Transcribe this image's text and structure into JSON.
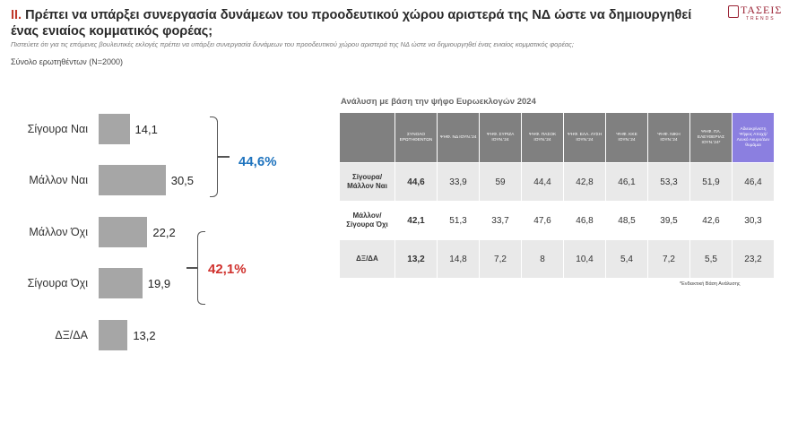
{
  "header": {
    "title_number": "II.",
    "title": "Πρέπει να υπάρξει συνεργασία δυνάμεων του προοδευτικού χώρου αριστερά της ΝΔ ώστε να δημιουργηθεί ένας ενιαίος κομματικός φορέας;",
    "subtitle": "Πιστεύετε ότι για τις επόμενες βουλευτικές εκλογές πρέπει να υπάρξει συνεργασία δυνάμεων του προοδευτικού χώρου αριστερά της ΝΔ ώστε να δημιουργηθεί ένας ενιαίος κομματικός φορέας;",
    "base": "Σύνολο ερωτηθέντων (N=2000)"
  },
  "logo": {
    "name": "ΤΑΣΕΙΣ",
    "sub": "TRENDS",
    "brand_color": "#9b2335"
  },
  "chart_data": {
    "type": "bar",
    "orientation": "horizontal",
    "categories": [
      "Σίγουρα Ναι",
      "Μάλλον Ναι",
      "Μάλλον Όχι",
      "Σίγουρα Όχι",
      "ΔΞ/ΔΑ"
    ],
    "values": [
      14.1,
      30.5,
      22.2,
      19.9,
      13.2
    ],
    "value_labels": [
      "14,1",
      "30,5",
      "22,2",
      "19,9",
      "13,2"
    ],
    "bar_color": "#a6a6a6",
    "groups": [
      {
        "label": "44,6%",
        "members": [
          "Σίγουρα Ναι",
          "Μάλλον Ναι"
        ],
        "color": "#1e73be"
      },
      {
        "label": "42,1%",
        "members": [
          "Μάλλον Όχι",
          "Σίγουρα Όχι"
        ],
        "color": "#d0312d"
      }
    ]
  },
  "table": {
    "title": "Ανάλυση με βάση την ψήφο Ευρωεκλογών 2024",
    "columns": [
      "ΣΥΝΟΛΟ ΕΡΩΤΗΘΕΝΤΩΝ",
      "ΨΗΦ. ΝΔ ΙΟΥΝ.'24",
      "ΨΗΦ. ΣΥΡΙΖΑ ΙΟΥΝ.'24",
      "ΨΗΦ. ΠΑΣΟΚ ΙΟΥΝ.'24",
      "ΨΗΦ. ΕΛΛ. ΛΥΣΗ ΙΟΥΝ.'24",
      "ΨΗΦ. ΚΚΕ ΙΟΥΝ.'24",
      "ΨΗΦ. ΝΙΚΗ ΙΟΥΝ.'24",
      "ΨΗΦ. ΠΛ. ΕΛΕΥΘΕΡΙΑΣ ΙΟΥΝ.'24*",
      "Αδιευκρίνιστη Ψήφος Αποχή/Λευκό Ακυρο/Δεν θυμάμαι"
    ],
    "highlight_column": 8,
    "highlight_color": "#8b7fe0",
    "rows": [
      {
        "label": "Σίγουρα/ Μάλλον Ναι",
        "values": [
          "44,6",
          "33,9",
          "59",
          "44,4",
          "42,8",
          "46,1",
          "53,3",
          "51,9",
          "46,4"
        ]
      },
      {
        "label": "Μάλλον/ Σίγουρα Όχι",
        "values": [
          "42,1",
          "51,3",
          "33,7",
          "47,6",
          "46,8",
          "48,5",
          "39,5",
          "42,6",
          "30,3"
        ]
      },
      {
        "label": "ΔΞ/ΔΑ",
        "values": [
          "13,2",
          "14,8",
          "7,2",
          "8",
          "10,4",
          "5,4",
          "7,2",
          "5,5",
          "23,2"
        ]
      }
    ],
    "note": "*Ενδεικτική Βάση Ανάλυσης"
  }
}
